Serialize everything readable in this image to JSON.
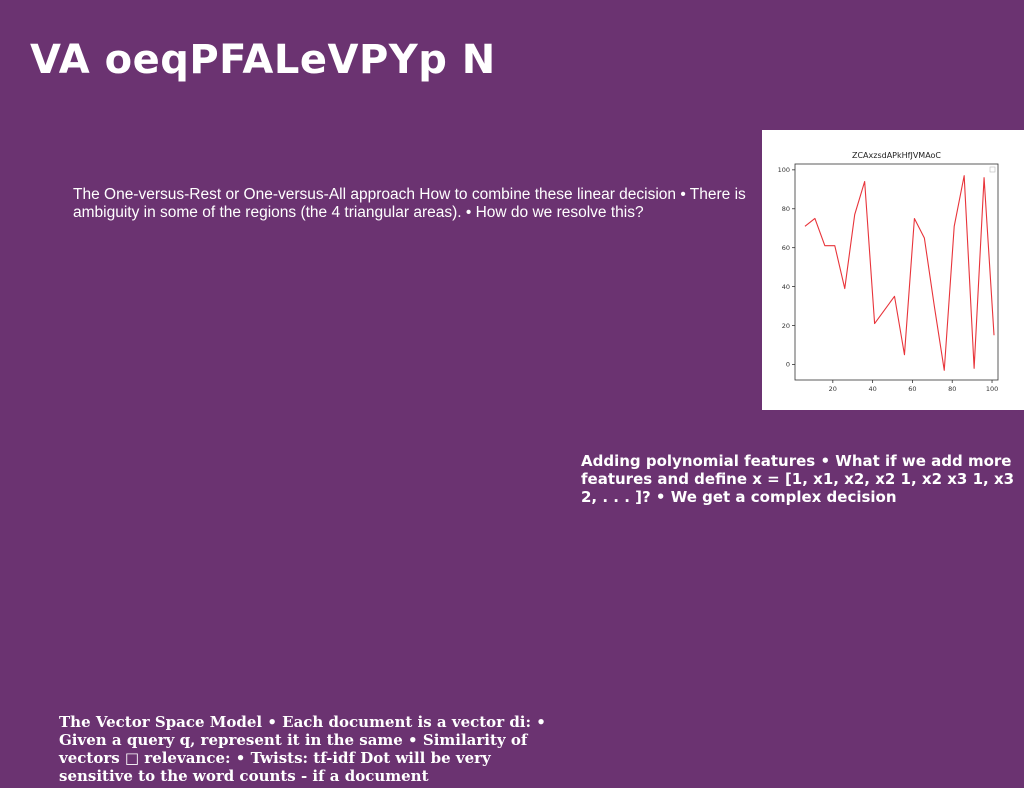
{
  "slide": {
    "title": "VA  oeqPFALeVPYp N",
    "paragraph_1": "The One-versus-Rest or One-versus-All approach How to combine these linear decision • There is ambiguity in some of the regions (the 4 triangular areas). • How do we resolve this?",
    "paragraph_2": "Adding polynomial features • What if we add more features and define x = [1, x1, x2, x2 1, x2 x3 1, x3 2, . . . ]? • We get a complex decision",
    "paragraph_3": "The Vector Space Model • Each document is a vector di: • Given a query q, represent it in the same • Similarity of vectors □ relevance: • Twists:  tf-idf Dot will be very sensitive to the word counts - if a document"
  },
  "colors": {
    "background": "#6b3371",
    "text": "#ffffff",
    "line": "#e8343a"
  },
  "chart_data": {
    "type": "line",
    "title": "ZCAxzsdAPkHfJVMAoC",
    "xlabel": "",
    "ylabel": "",
    "xlim": [
      1,
      103
    ],
    "ylim": [
      -8,
      103
    ],
    "x_ticks": [
      20,
      40,
      60,
      80,
      100
    ],
    "y_ticks": [
      0,
      20,
      40,
      60,
      80,
      100
    ],
    "legend": "top-right",
    "grid": false,
    "series": [
      {
        "x": [
          6,
          11,
          16,
          21,
          26,
          31,
          36,
          41,
          46,
          51,
          56,
          61,
          66,
          71,
          76,
          81,
          86,
          91,
          96,
          101
        ],
        "y": [
          71,
          75,
          61,
          61,
          39,
          77,
          94,
          21,
          28,
          35,
          5,
          75,
          65,
          30,
          -3,
          71,
          97,
          -2,
          96,
          15
        ]
      }
    ]
  }
}
